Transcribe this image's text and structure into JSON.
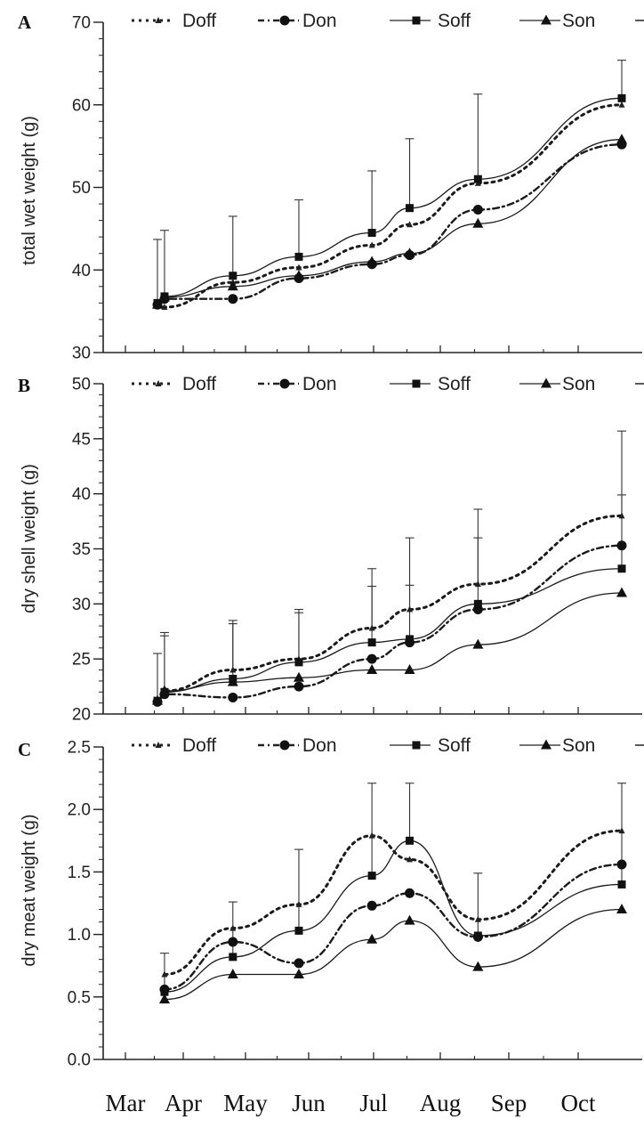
{
  "figure": {
    "x_tick_labels": [
      "Mar",
      "Apr",
      "May",
      "Jun",
      "Jul",
      "Aug",
      "Sep",
      "Oct"
    ]
  },
  "chart_data": [
    {
      "panel": "A",
      "type": "line",
      "ylabel": "total wet weight (g)",
      "ylim": [
        30,
        70
      ],
      "yticks": [
        30,
        40,
        50,
        60,
        70
      ],
      "x_dates": [
        "Mar 29",
        "Apr 1",
        "Apr 30",
        "May 28",
        "Jun 28",
        "Jul 14",
        "Aug 12",
        "Oct 12"
      ],
      "series": [
        {
          "name": "Doff",
          "style": "dotted",
          "marker": "small-triangle",
          "values": [
            36.0,
            35.5,
            38.5,
            40.3,
            43.0,
            45.5,
            50.5,
            60.0
          ],
          "err": [
            0,
            0,
            0,
            0,
            0,
            0,
            0,
            0
          ]
        },
        {
          "name": "Don",
          "style": "dash-dot",
          "marker": "circle",
          "values": [
            35.8,
            36.5,
            36.5,
            39.0,
            40.7,
            41.8,
            47.3,
            55.2
          ],
          "err": [
            0,
            0,
            0,
            0,
            0,
            0,
            0,
            0
          ]
        },
        {
          "name": "Soff",
          "style": "solid",
          "marker": "square",
          "values": [
            36.0,
            36.8,
            39.3,
            41.6,
            44.5,
            47.5,
            51.0,
            60.8
          ],
          "err": [
            7.7,
            8.0,
            7.2,
            6.9,
            7.5,
            8.4,
            10.3,
            4.6
          ]
        },
        {
          "name": "Son",
          "style": "solid",
          "marker": "triangle",
          "values": [
            35.8,
            36.7,
            38.0,
            39.3,
            41.0,
            42.0,
            45.6,
            55.8
          ],
          "err": [
            0,
            0,
            0,
            0,
            0,
            0,
            0,
            0
          ]
        }
      ]
    },
    {
      "panel": "B",
      "type": "line",
      "ylabel": "dry shell weight (g)",
      "ylim": [
        20,
        50
      ],
      "yticks": [
        20,
        25,
        30,
        35,
        40,
        45,
        50
      ],
      "x_dates": [
        "Mar 29",
        "Apr 1",
        "Apr 30",
        "May 28",
        "Jun 28",
        "Jul 14",
        "Aug 12",
        "Oct 12"
      ],
      "series": [
        {
          "name": "Doff",
          "style": "dotted",
          "marker": "small-triangle",
          "values": [
            21.2,
            22.1,
            24.0,
            25.0,
            27.8,
            29.5,
            31.8,
            38.0
          ],
          "err": [
            0,
            5.0,
            4.5,
            4.2,
            3.8,
            2.2,
            4.2,
            1.9
          ]
        },
        {
          "name": "Don",
          "style": "dash-dot",
          "marker": "circle",
          "values": [
            21.1,
            21.8,
            21.5,
            22.5,
            25.0,
            26.5,
            29.5,
            35.3
          ],
          "err": [
            0,
            0,
            0,
            0,
            0,
            0,
            0,
            0
          ]
        },
        {
          "name": "Soff",
          "style": "solid",
          "marker": "square",
          "values": [
            21.2,
            22.0,
            23.2,
            24.7,
            26.5,
            26.8,
            30.0,
            33.2
          ],
          "err": [
            4.3,
            5.4,
            5.0,
            4.8,
            6.7,
            9.2,
            8.6,
            12.5
          ]
        },
        {
          "name": "Son",
          "style": "solid",
          "marker": "triangle",
          "values": [
            21.2,
            22.1,
            22.9,
            23.3,
            24.0,
            24.0,
            26.3,
            31.0
          ],
          "err": [
            0,
            0,
            0,
            0,
            0,
            0,
            0,
            0
          ]
        }
      ]
    },
    {
      "panel": "C",
      "type": "line",
      "ylabel": "dry meat weight (g)",
      "ylim": [
        0.0,
        2.5
      ],
      "yticks": [
        "0.0",
        "0.5",
        "1.0",
        "1.5",
        "2.0",
        "2.5"
      ],
      "x_dates": [
        "Apr 1",
        "Apr 30",
        "May 28",
        "Jun 28",
        "Jul 14",
        "Aug 12",
        "Oct 12"
      ],
      "series": [
        {
          "name": "Doff",
          "style": "dotted",
          "marker": "small-triangle",
          "values": [
            0.68,
            1.05,
            1.24,
            1.79,
            1.6,
            1.12,
            1.83
          ],
          "err": [
            0,
            0,
            0,
            0,
            0,
            0,
            0
          ]
        },
        {
          "name": "Don",
          "style": "dash-dot",
          "marker": "circle",
          "values": [
            0.56,
            0.94,
            0.77,
            1.23,
            1.33,
            0.98,
            1.56
          ],
          "err": [
            0,
            0,
            0,
            0,
            0,
            0,
            0
          ]
        },
        {
          "name": "Soff",
          "style": "solid",
          "marker": "square",
          "values": [
            0.54,
            0.82,
            1.03,
            1.47,
            1.75,
            0.99,
            1.4
          ],
          "err": [
            0.31,
            0.44,
            0.65,
            0.74,
            0.46,
            0.5,
            0.81
          ]
        },
        {
          "name": "Son",
          "style": "solid",
          "marker": "triangle",
          "values": [
            0.48,
            0.68,
            0.68,
            0.96,
            1.11,
            0.74,
            1.2
          ],
          "err": [
            0,
            0,
            0,
            0,
            0,
            0,
            0
          ]
        }
      ]
    }
  ]
}
